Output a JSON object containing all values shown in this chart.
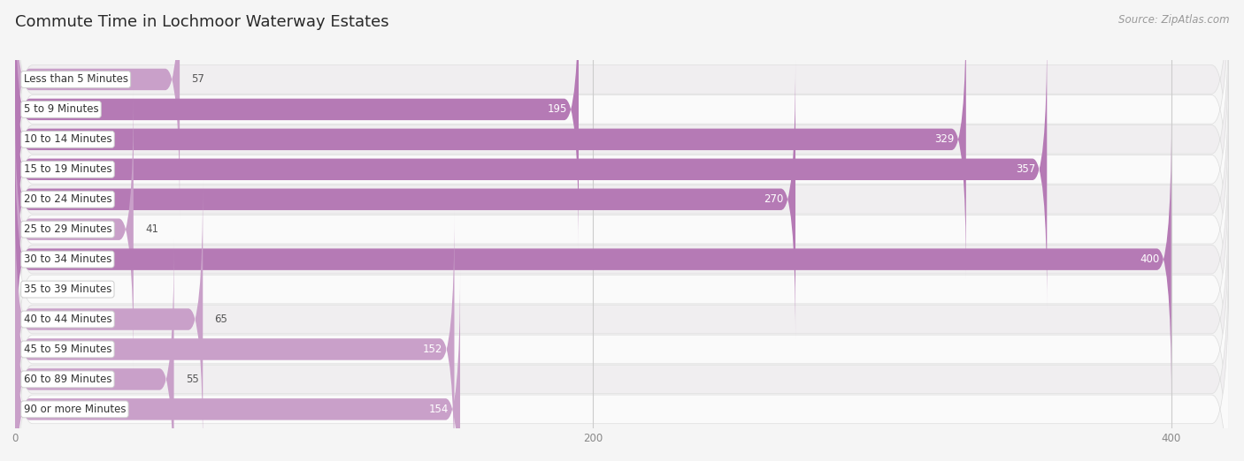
{
  "title": "Commute Time in Lochmoor Waterway Estates",
  "source": "Source: ZipAtlas.com",
  "categories": [
    "Less than 5 Minutes",
    "5 to 9 Minutes",
    "10 to 14 Minutes",
    "15 to 19 Minutes",
    "20 to 24 Minutes",
    "25 to 29 Minutes",
    "30 to 34 Minutes",
    "35 to 39 Minutes",
    "40 to 44 Minutes",
    "45 to 59 Minutes",
    "60 to 89 Minutes",
    "90 or more Minutes"
  ],
  "values": [
    57,
    195,
    329,
    357,
    270,
    41,
    400,
    0,
    65,
    152,
    55,
    154
  ],
  "bar_colors": [
    "#c9a0c9",
    "#b57ab5",
    "#b57ab5",
    "#b57ab5",
    "#b57ab5",
    "#c9a0c9",
    "#b57ab5",
    "#c9a0c9",
    "#c9a0c9",
    "#c9a0c9",
    "#c9a0c9",
    "#c9a0c9"
  ],
  "row_bg_even": "#f0eef0",
  "row_bg_odd": "#fafafa",
  "background_color": "#f5f5f5",
  "title_color": "#2a2a2a",
  "label_color": "#333333",
  "value_color_inside": "#ffffff",
  "value_color_outside": "#555555",
  "xlim_max": 420,
  "xticks": [
    0,
    200,
    400
  ],
  "title_fontsize": 13,
  "label_fontsize": 8.5,
  "value_fontsize": 8.5,
  "source_fontsize": 8.5
}
